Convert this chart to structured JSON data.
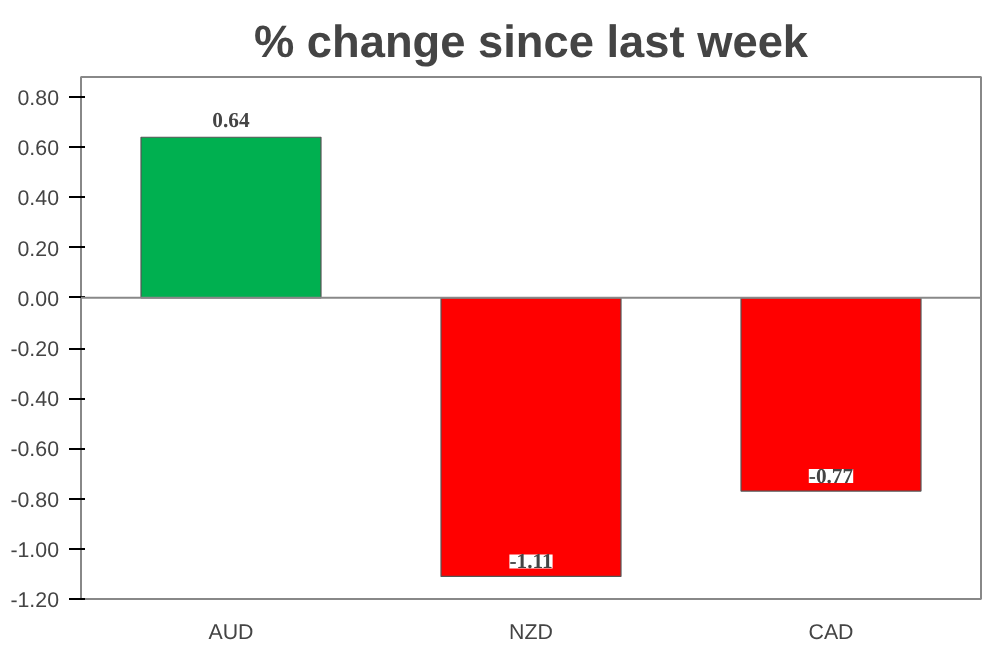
{
  "chart_data": {
    "type": "bar",
    "title": "% change since last week",
    "categories": [
      "AUD",
      "NZD",
      "CAD"
    ],
    "values": [
      0.64,
      -1.11,
      -0.77
    ],
    "colors": [
      "#00b050",
      "#ff0000",
      "#ff0000"
    ],
    "ylim": [
      -1.2,
      0.88
    ],
    "yticks": [
      {
        "value": -1.2,
        "label": "-1.20"
      },
      {
        "value": -1.0,
        "label": "-1.00"
      },
      {
        "value": -0.8,
        "label": "-0.80"
      },
      {
        "value": -0.6,
        "label": "-0.60"
      },
      {
        "value": -0.4,
        "label": "-0.40"
      },
      {
        "value": -0.2,
        "label": "-0.20"
      },
      {
        "value": 0,
        "label": "0.00"
      },
      {
        "value": 0.2,
        "label": "0.20"
      },
      {
        "value": 0.4,
        "label": "0.40"
      },
      {
        "value": 0.6,
        "label": "0.60"
      },
      {
        "value": 0.8,
        "label": "0.80"
      }
    ],
    "data_labels": true
  }
}
